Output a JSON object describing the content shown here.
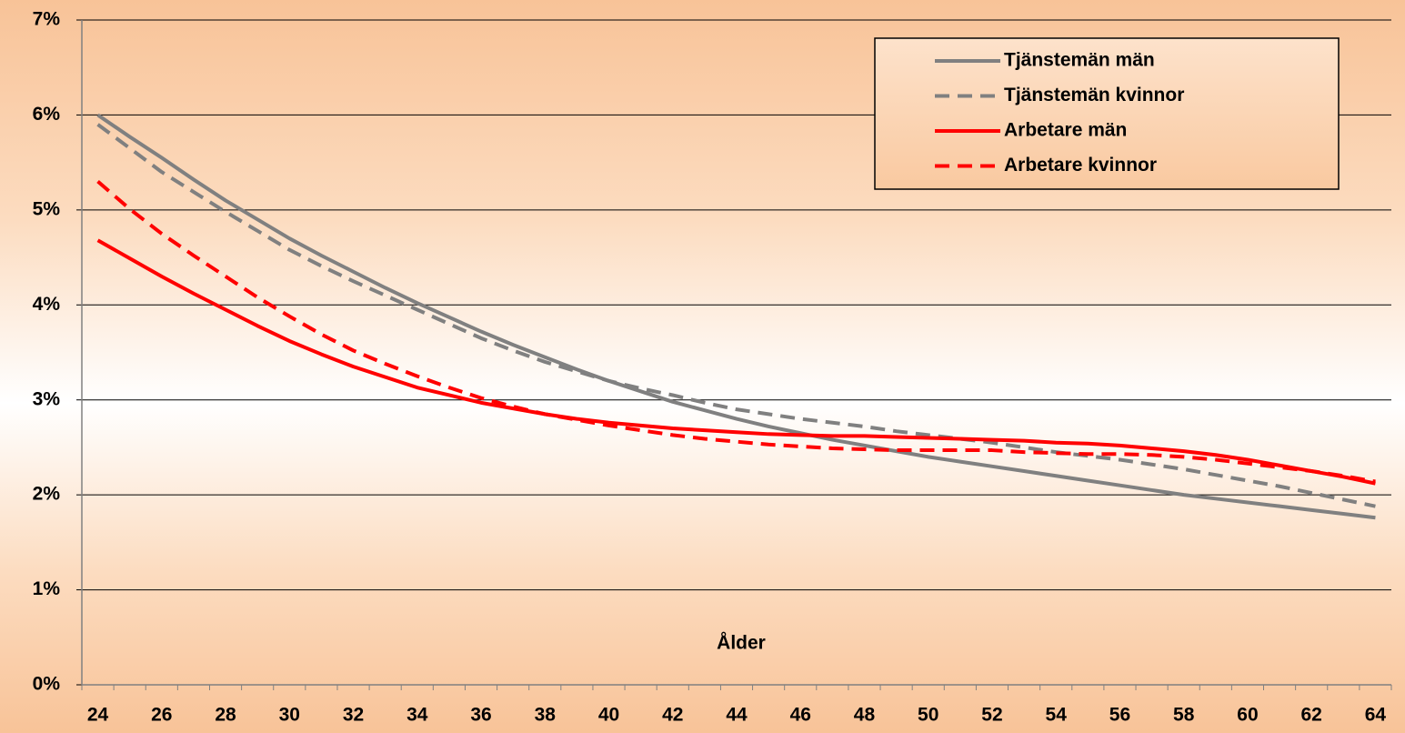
{
  "chart_data": {
    "type": "line",
    "x_label": "Ålder",
    "categories": [
      24,
      null,
      26,
      null,
      28,
      null,
      30,
      null,
      32,
      null,
      34,
      null,
      36,
      null,
      38,
      null,
      40,
      null,
      42,
      null,
      44,
      null,
      46,
      null,
      48,
      null,
      50,
      null,
      52,
      null,
      54,
      null,
      56,
      null,
      58,
      null,
      60,
      null,
      62,
      null,
      64
    ],
    "series": [
      {
        "name": "Tjänstemän män",
        "color": "#808080",
        "dashed": false,
        "values": [
          6.0,
          5.77,
          5.55,
          5.32,
          5.1,
          4.9,
          4.7,
          4.52,
          4.35,
          4.18,
          4.02,
          3.87,
          3.72,
          3.58,
          3.45,
          3.32,
          3.2,
          3.09,
          2.98,
          2.89,
          2.8,
          2.72,
          2.65,
          2.58,
          2.52,
          2.46,
          2.4,
          2.35,
          2.3,
          2.25,
          2.2,
          2.15,
          2.1,
          2.05,
          2.0,
          1.96,
          1.92,
          1.88,
          1.84,
          1.8,
          1.76
        ]
      },
      {
        "name": "Tjänstemän kvinnor",
        "color": "#808080",
        "dashed": true,
        "values": [
          5.9,
          5.65,
          5.4,
          5.19,
          4.98,
          4.78,
          4.58,
          4.41,
          4.25,
          4.1,
          3.95,
          3.8,
          3.65,
          3.52,
          3.4,
          3.3,
          3.2,
          3.12,
          3.05,
          2.97,
          2.9,
          2.85,
          2.8,
          2.76,
          2.72,
          2.67,
          2.63,
          2.59,
          2.55,
          2.5,
          2.45,
          2.41,
          2.37,
          2.32,
          2.27,
          2.21,
          2.15,
          2.09,
          2.02,
          1.95,
          1.88
        ]
      },
      {
        "name": "Arbetare män",
        "color": "#ff0000",
        "dashed": false,
        "values": [
          4.68,
          4.49,
          4.3,
          4.12,
          3.95,
          3.78,
          3.62,
          3.48,
          3.35,
          3.24,
          3.13,
          3.05,
          2.97,
          2.91,
          2.85,
          2.8,
          2.76,
          2.73,
          2.7,
          2.68,
          2.66,
          2.64,
          2.63,
          2.62,
          2.62,
          2.61,
          2.6,
          2.59,
          2.58,
          2.57,
          2.55,
          2.54,
          2.52,
          2.49,
          2.46,
          2.42,
          2.37,
          2.31,
          2.25,
          2.19,
          2.12
        ]
      },
      {
        "name": "Arbetare kvinnor",
        "color": "#ff0000",
        "dashed": true,
        "values": [
          5.3,
          5.01,
          4.75,
          4.52,
          4.3,
          4.08,
          3.88,
          3.69,
          3.52,
          3.38,
          3.25,
          3.13,
          3.02,
          2.93,
          2.85,
          2.79,
          2.73,
          2.68,
          2.63,
          2.59,
          2.56,
          2.53,
          2.51,
          2.49,
          2.48,
          2.47,
          2.47,
          2.47,
          2.47,
          2.45,
          2.44,
          2.43,
          2.43,
          2.42,
          2.4,
          2.37,
          2.33,
          2.29,
          2.25,
          2.2,
          2.14
        ]
      }
    ],
    "ylim": [
      0,
      7
    ],
    "yticks": [
      {
        "value": 0,
        "label": "0%"
      },
      {
        "value": 1,
        "label": "1%"
      },
      {
        "value": 2,
        "label": "2%"
      },
      {
        "value": 3,
        "label": "3%"
      },
      {
        "value": 4,
        "label": "4%"
      },
      {
        "value": 5,
        "label": "5%"
      },
      {
        "value": 6,
        "label": "6%"
      },
      {
        "value": 7,
        "label": "7%"
      }
    ],
    "grid": true,
    "legend": "upper-right"
  }
}
